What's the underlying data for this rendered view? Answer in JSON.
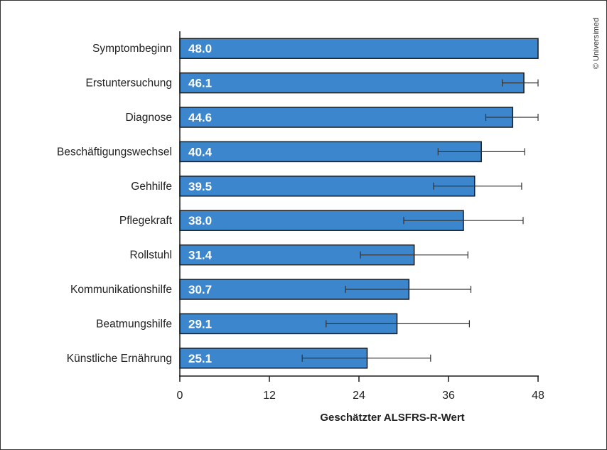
{
  "chart_data": {
    "type": "bar",
    "orientation": "horizontal",
    "categories": [
      "Symptombeginn",
      "Erstuntersuchung",
      "Diagnose",
      "Beschäftigungswechsel",
      "Gehhilfe",
      "Pflegekraft",
      "Rollstuhl",
      "Kommunikationshilfe",
      "Beatmungshilfe",
      "Künstliche Ernährung"
    ],
    "values": [
      48.0,
      46.1,
      44.6,
      40.4,
      39.5,
      38.0,
      31.4,
      30.7,
      29.1,
      25.1
    ],
    "value_labels": [
      "48.0",
      "46.1",
      "44.6",
      "40.4",
      "39.5",
      "38.0",
      "31.4",
      "30.7",
      "29.1",
      "25.1"
    ],
    "error_low": [
      null,
      43.2,
      41.0,
      34.6,
      34.0,
      30.0,
      24.2,
      22.2,
      19.6,
      16.4
    ],
    "error_high": [
      null,
      48.0,
      48.0,
      46.2,
      45.8,
      46.0,
      38.6,
      39.0,
      38.8,
      33.6
    ],
    "xlabel": "Geschätzter ALSFRS-R-Wert",
    "ylabel": "",
    "xlim": [
      0,
      48
    ],
    "xticks": [
      "0",
      "12",
      "24",
      "36",
      "48"
    ],
    "grid": false,
    "bar_color": "#3b86cc",
    "bar_border_color": "#1a1a1a",
    "copyright": "© Universimed"
  }
}
